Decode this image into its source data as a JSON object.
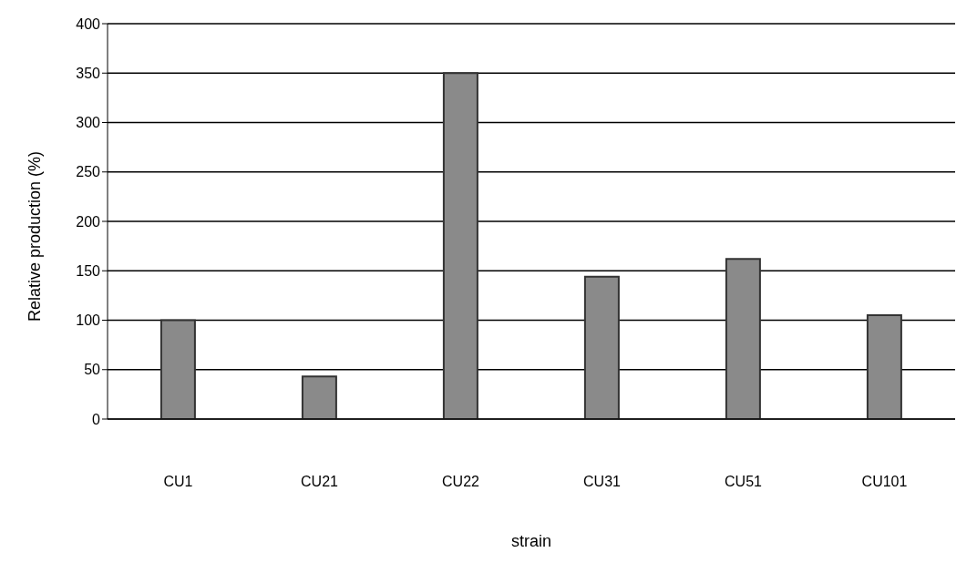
{
  "chart_data": {
    "type": "bar",
    "xlabel": "strain",
    "ylabel": "Relative production (%)",
    "categories": [
      "CU1",
      "CU21",
      "CU22",
      "CU31",
      "CU51",
      "CU101"
    ],
    "values": [
      100,
      43,
      350,
      144,
      162,
      105
    ],
    "color": "#8a8a8a",
    "ylim": [
      0,
      400
    ],
    "yticks": [
      0,
      50,
      100,
      150,
      200,
      250,
      300,
      350,
      400
    ],
    "grid": "y"
  }
}
